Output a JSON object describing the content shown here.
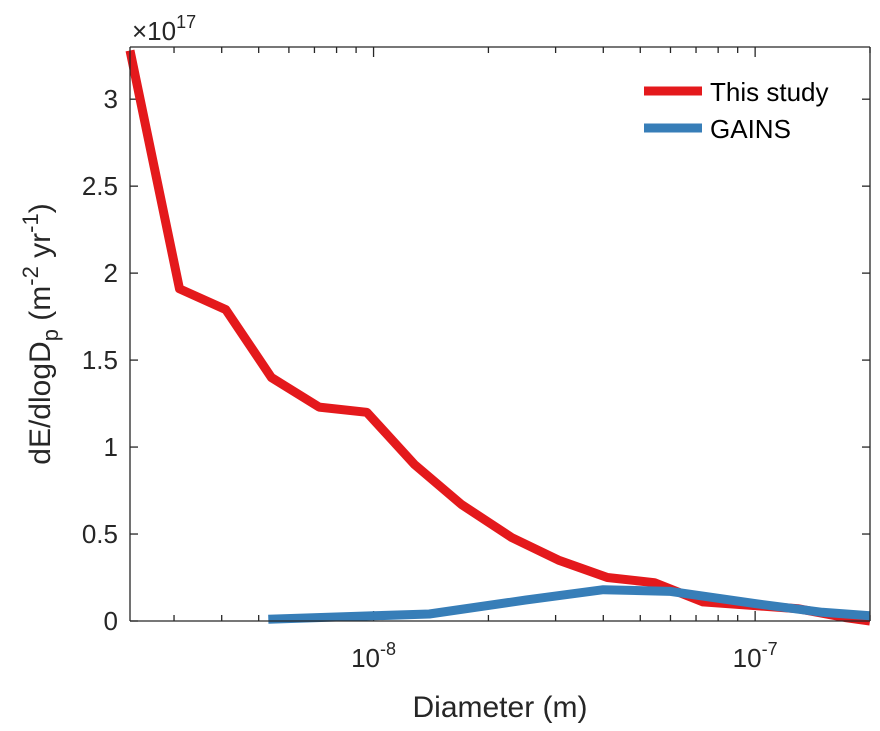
{
  "chart_data": {
    "type": "line",
    "xlabel": "Diameter (m)",
    "ylabel_parts": {
      "base": "dE/dlogD",
      "sub": "p",
      "mid1": " (m",
      "sup1": "-2",
      "mid2": " yr",
      "sup2": "-1",
      "end": ")"
    },
    "x_scale": "log",
    "xlim": [
      2.3e-09,
      2e-07
    ],
    "ylim": [
      0,
      3.3
    ],
    "y_exponent_label": {
      "base": "×10",
      "sup": "17"
    },
    "yticks": [
      0,
      0.5,
      1,
      1.5,
      2,
      2.5,
      3
    ],
    "ytick_labels": [
      "0",
      "0.5",
      "1",
      "1.5",
      "2",
      "2.5",
      "3"
    ],
    "xticks_major": [
      {
        "value": 1e-08,
        "base": "10",
        "sup": "-8"
      },
      {
        "value": 1e-07,
        "base": "10",
        "sup": "-7"
      }
    ],
    "legend_position": "top-right",
    "series": [
      {
        "name": "This study",
        "color": "#e4191c",
        "x": [
          2.3e-09,
          3.1e-09,
          4.1e-09,
          5.4e-09,
          7.2e-09,
          9.6e-09,
          1.28e-08,
          1.7e-08,
          2.3e-08,
          3.05e-08,
          4.1e-08,
          5.45e-08,
          7.3e-08,
          9.7e-08,
          1.3e-07,
          1.72e-07,
          2e-07
        ],
        "values": [
          3.28,
          1.91,
          1.79,
          1.4,
          1.23,
          1.2,
          0.9,
          0.67,
          0.48,
          0.35,
          0.25,
          0.22,
          0.11,
          0.09,
          0.07,
          0.02,
          0.0
        ]
      },
      {
        "name": "GAINS",
        "color": "#377eb8",
        "x": [
          5.3e-09,
          1e-08,
          1.4e-08,
          2.5e-08,
          4e-08,
          6e-08,
          1e-07,
          1.5e-07,
          2e-07
        ],
        "values": [
          0.01,
          0.03,
          0.04,
          0.12,
          0.18,
          0.17,
          0.1,
          0.05,
          0.03
        ]
      }
    ]
  }
}
